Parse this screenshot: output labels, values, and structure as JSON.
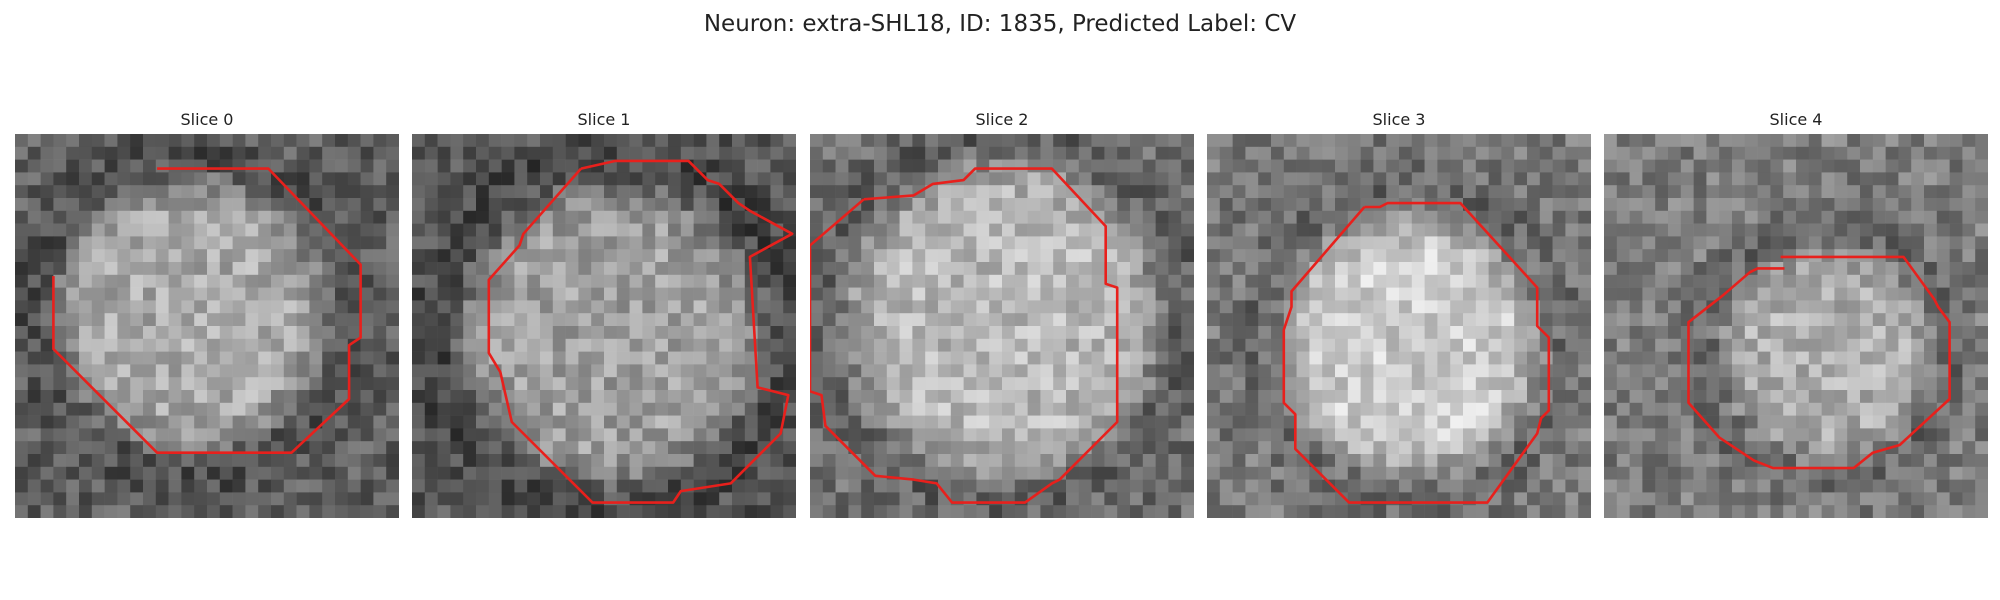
{
  "figure": {
    "title": "Neuron: extra-SHL18, ID: 1835, Predicted Label: CV"
  },
  "panels": [
    {
      "title": "Slice 0"
    },
    {
      "title": "Slice 1"
    },
    {
      "title": "Slice 2"
    },
    {
      "title": "Slice 3"
    },
    {
      "title": "Slice 4"
    }
  ],
  "colors": {
    "contour": "#e8201c",
    "background": "#ffffff",
    "text": "#222222"
  }
}
